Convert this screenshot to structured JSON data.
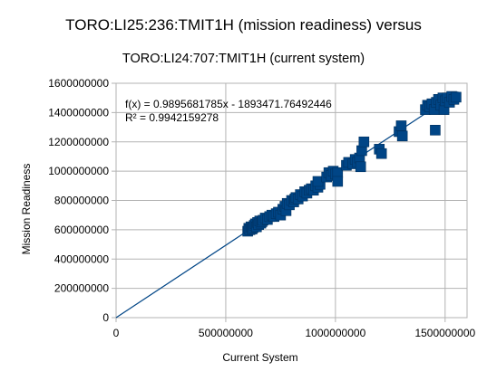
{
  "title_line1": "TORO:LI25:236:TMIT1H (mission readiness) versus",
  "title_line2": "TORO:LI24:707:TMIT1H (current system)",
  "chart_data": {
    "type": "scatter",
    "xlabel": "Current System",
    "ylabel": "Mission Readiness",
    "xlim": [
      0,
      1600000000
    ],
    "ylim": [
      0,
      1600000000
    ],
    "x_ticks": [
      "0",
      "500000000",
      "1000000000",
      "1500000000"
    ],
    "x_tick_values": [
      0,
      500000000,
      1000000000,
      1500000000
    ],
    "y_ticks": [
      "0",
      "200000000",
      "400000000",
      "600000000",
      "800000000",
      "1000000000",
      "1200000000",
      "1400000000",
      "1600000000"
    ],
    "y_tick_values": [
      0,
      200000000,
      400000000,
      600000000,
      800000000,
      1000000000,
      1200000000,
      1400000000,
      1600000000
    ],
    "grid": true,
    "marker_color": "#004586",
    "trendline_color": "#004586",
    "trendline": {
      "slope": 0.9895681785,
      "intercept": -1893471.76492446,
      "equation_label": "f(x) = 0.9895681785x - 1893471.76492446",
      "r2_label": "R² = 0.9942159278"
    },
    "points": [
      [
        600000000,
        590000000
      ],
      [
        605000000,
        610000000
      ],
      [
        610000000,
        600000000
      ],
      [
        615000000,
        620000000
      ],
      [
        620000000,
        605000000
      ],
      [
        625000000,
        615000000
      ],
      [
        630000000,
        630000000
      ],
      [
        635000000,
        640000000
      ],
      [
        640000000,
        620000000
      ],
      [
        645000000,
        650000000
      ],
      [
        650000000,
        635000000
      ],
      [
        655000000,
        660000000
      ],
      [
        660000000,
        645000000
      ],
      [
        665000000,
        655000000
      ],
      [
        670000000,
        665000000
      ],
      [
        680000000,
        680000000
      ],
      [
        690000000,
        670000000
      ],
      [
        700000000,
        690000000
      ],
      [
        710000000,
        700000000
      ],
      [
        720000000,
        690000000
      ],
      [
        730000000,
        710000000
      ],
      [
        740000000,
        720000000
      ],
      [
        750000000,
        700000000
      ],
      [
        760000000,
        740000000
      ],
      [
        770000000,
        760000000
      ],
      [
        775000000,
        730000000
      ],
      [
        780000000,
        780000000
      ],
      [
        790000000,
        770000000
      ],
      [
        800000000,
        800000000
      ],
      [
        810000000,
        790000000
      ],
      [
        815000000,
        810000000
      ],
      [
        820000000,
        820000000
      ],
      [
        830000000,
        810000000
      ],
      [
        840000000,
        840000000
      ],
      [
        850000000,
        830000000
      ],
      [
        860000000,
        860000000
      ],
      [
        870000000,
        850000000
      ],
      [
        880000000,
        870000000
      ],
      [
        890000000,
        880000000
      ],
      [
        900000000,
        870000000
      ],
      [
        910000000,
        900000000
      ],
      [
        920000000,
        890000000
      ],
      [
        930000000,
        910000000
      ],
      [
        920000000,
        930000000
      ],
      [
        960000000,
        960000000
      ],
      [
        970000000,
        990000000
      ],
      [
        980000000,
        970000000
      ],
      [
        990000000,
        1000000000
      ],
      [
        1000000000,
        980000000
      ],
      [
        1010000000,
        990000000
      ],
      [
        1010000000,
        930000000
      ],
      [
        1050000000,
        1040000000
      ],
      [
        1060000000,
        1060000000
      ],
      [
        1080000000,
        1050000000
      ],
      [
        1090000000,
        1080000000
      ],
      [
        1100000000,
        1060000000
      ],
      [
        1110000000,
        1090000000
      ],
      [
        1115000000,
        1030000000
      ],
      [
        1120000000,
        1140000000
      ],
      [
        1130000000,
        1200000000
      ],
      [
        1200000000,
        1150000000
      ],
      [
        1210000000,
        1120000000
      ],
      [
        1290000000,
        1270000000
      ],
      [
        1300000000,
        1310000000
      ],
      [
        1305000000,
        1240000000
      ],
      [
        1410000000,
        1420000000
      ],
      [
        1420000000,
        1450000000
      ],
      [
        1430000000,
        1440000000
      ],
      [
        1440000000,
        1460000000
      ],
      [
        1450000000,
        1420000000
      ],
      [
        1455000000,
        1280000000
      ],
      [
        1460000000,
        1470000000
      ],
      [
        1470000000,
        1490000000
      ],
      [
        1480000000,
        1450000000
      ],
      [
        1490000000,
        1500000000
      ],
      [
        1495000000,
        1420000000
      ],
      [
        1500000000,
        1480000000
      ],
      [
        1510000000,
        1500000000
      ],
      [
        1520000000,
        1470000000
      ],
      [
        1530000000,
        1510000000
      ],
      [
        1540000000,
        1490000000
      ],
      [
        1550000000,
        1505000000
      ]
    ]
  }
}
